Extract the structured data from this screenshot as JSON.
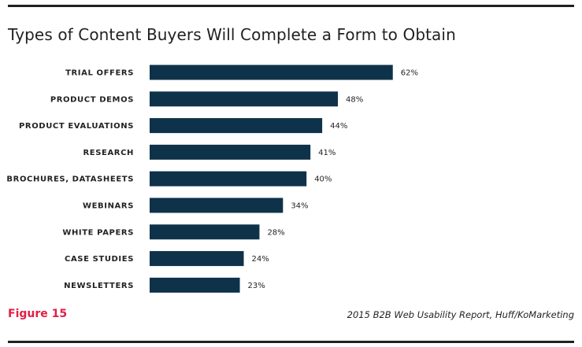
{
  "figure_label": "Figure 15",
  "source": "2015 B2B Web Usability Report, Huff/KoMarketing",
  "colors": {
    "bar": "#0e3249",
    "figure_label": "#e31e43",
    "text": "#231f20"
  },
  "chart_data": {
    "type": "bar",
    "orientation": "horizontal",
    "title": "Types of Content Buyers Will Complete a Form to Obtain",
    "categories": [
      "TRIAL OFFERS",
      "PRODUCT DEMOS",
      "PRODUCT EVALUATIONS",
      "RESEARCH",
      "BROCHURES, DATASHEETS",
      "WEBINARS",
      "WHITE PAPERS",
      "CASE STUDIES",
      "NEWSLETTERS"
    ],
    "values": [
      62,
      48,
      44,
      41,
      40,
      34,
      28,
      24,
      23
    ],
    "value_labels": [
      "62%",
      "48%",
      "44%",
      "41%",
      "40%",
      "34%",
      "28%",
      "24%",
      "23%"
    ],
    "unit": "%",
    "xlim": [
      0,
      100
    ],
    "grid": false,
    "legend": "none"
  }
}
